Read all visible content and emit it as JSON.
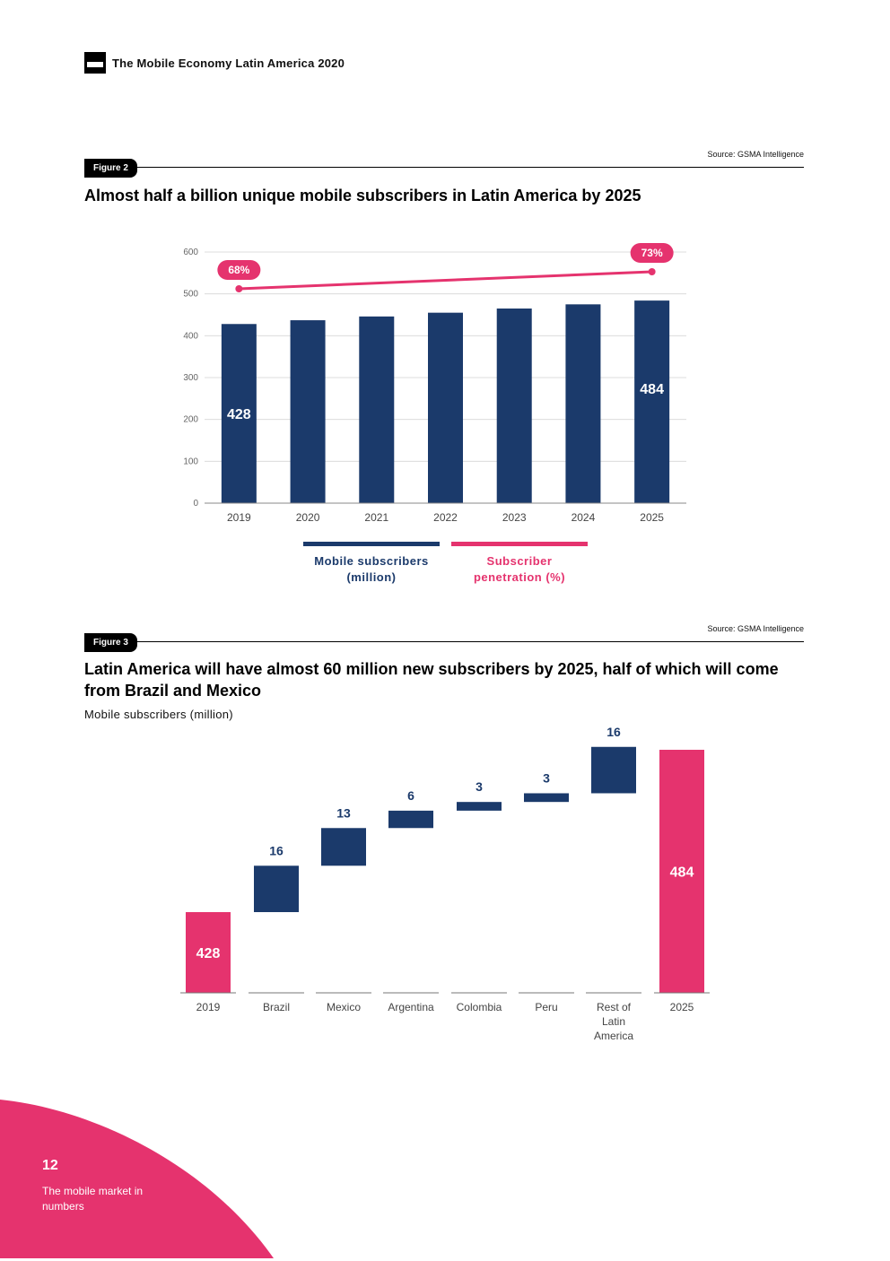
{
  "header": {
    "title": "The Mobile Economy Latin America 2020"
  },
  "figure2": {
    "tag": "Figure 2",
    "source": "Source: GSMA Intelligence",
    "title": "Almost half a billion unique mobile subscribers in Latin America by 2025"
  },
  "figure3": {
    "tag": "Figure 3",
    "source": "Source: GSMA Intelligence",
    "title": "Latin America will have almost 60 million new subscribers by 2025, half of which will come from Brazil and Mexico",
    "subtitle": "Mobile subscribers (million)"
  },
  "legend": {
    "subscribers": "Mobile subscribers (million)",
    "penetration": "Subscriber penetration (%)"
  },
  "colors": {
    "navy": "#1b3a6b",
    "pink": "#e5336e",
    "grid": "#dcdcdc",
    "axis": "#666666"
  },
  "chart_data": [
    {
      "type": "bar",
      "title": "Almost half a billion unique mobile subscribers in Latin America by 2025",
      "categories": [
        "2019",
        "2020",
        "2021",
        "2022",
        "2023",
        "2024",
        "2025"
      ],
      "series": [
        {
          "name": "Mobile subscribers (million)",
          "values": [
            428,
            437,
            446,
            455,
            465,
            475,
            484
          ]
        },
        {
          "name": "Subscriber penetration (%)",
          "type": "line",
          "values": [
            68,
            69,
            70,
            71,
            71,
            72,
            73
          ]
        }
      ],
      "bar_labels": {
        "2019": "428",
        "2025": "484"
      },
      "line_labels": {
        "2019": "68%",
        "2025": "73%"
      },
      "yticks": [
        "0",
        "100",
        "200",
        "300",
        "400",
        "500",
        "600"
      ],
      "ylim": [
        0,
        600
      ],
      "penetration_range": [
        68,
        73
      ]
    },
    {
      "type": "waterfall",
      "title": "Latin America will have almost 60 million new subscribers by 2025, half of which will come from Brazil and Mexico",
      "ylabel": "Mobile subscribers (million)",
      "categories": [
        "2019",
        "Brazil",
        "Mexico",
        "Argentina",
        "Colombia",
        "Peru",
        "Rest of Latin America",
        "2025"
      ],
      "category_lines": [
        [
          "2019"
        ],
        [
          "Brazil"
        ],
        [
          "Mexico"
        ],
        [
          "Argentina"
        ],
        [
          "Colombia"
        ],
        [
          "Peru"
        ],
        [
          "Rest of",
          "Latin",
          "America"
        ],
        [
          "2025"
        ]
      ],
      "values": [
        428,
        16,
        13,
        6,
        3,
        3,
        16,
        484
      ],
      "labels": [
        "428",
        "16",
        "13",
        "6",
        "3",
        "3",
        "16",
        "484"
      ],
      "kinds": [
        "total",
        "delta",
        "delta",
        "delta",
        "delta",
        "delta",
        "delta",
        "total"
      ]
    }
  ],
  "footer": {
    "page_number": "12",
    "section": "The mobile market in numbers"
  }
}
